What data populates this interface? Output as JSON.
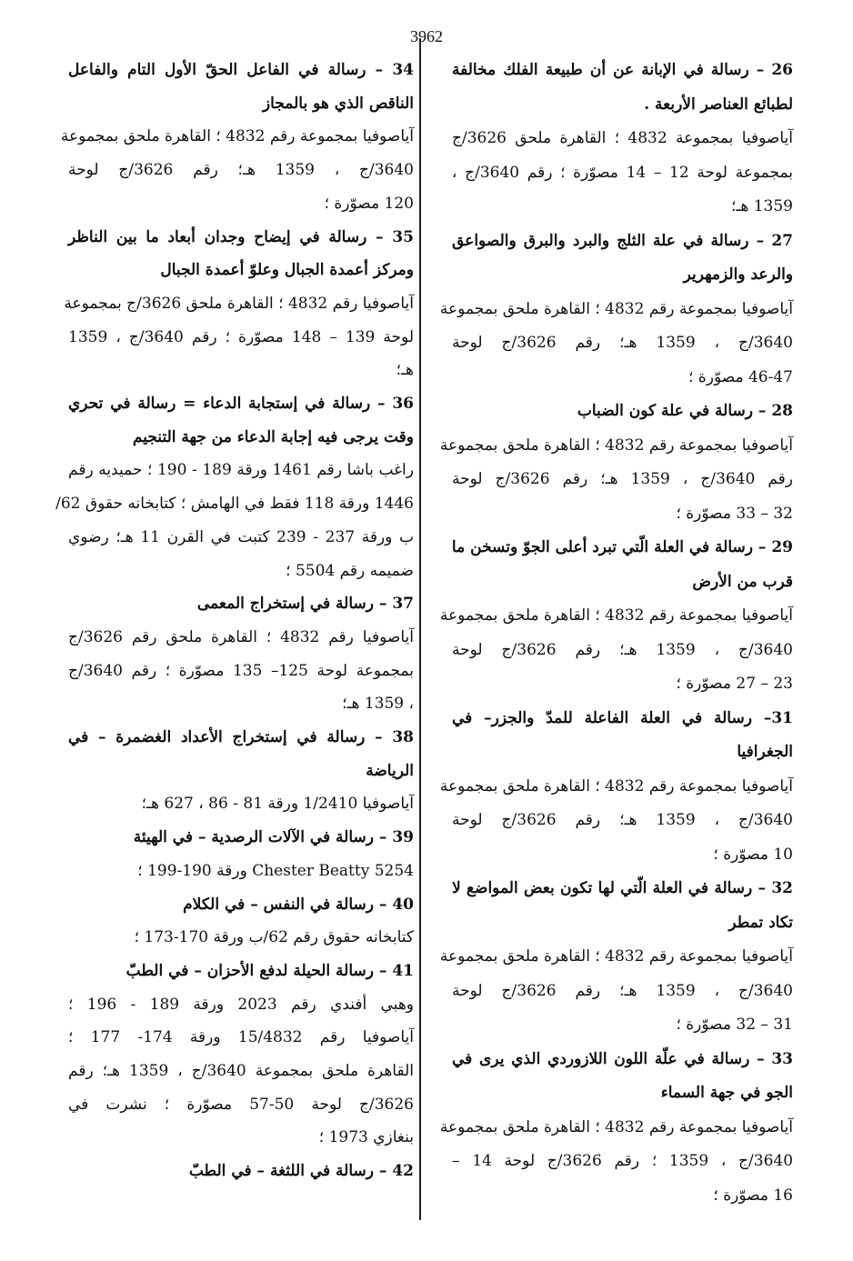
{
  "page_number": "3962",
  "columns": {
    "right": [
      {
        "title": [
          "26 – رسالة في الإبانة عن أن طبيعة الفلك مخالفة",
          "لطبائع العناصر الأربعة ."
        ],
        "body": [
          "آياصوفيا بمجموعة 4832 ؛ القاهرة ملحق 3626/ج",
          "بمجموعة لوحة 12 – 14 مصوّرة ؛ رقم 3640/ج ،",
          "1359 هـ؛"
        ]
      },
      {
        "title": [
          "27 – رسالة في علة الثلج والبرد والبرق والصواعق",
          "والرعد والزمهرير"
        ],
        "body": [
          "آياصوفيا بمجموعة رقم 4832 ؛ القاهرة ملحق بمجموعة",
          "3640/ج ، 1359 هـ؛ رقم 3626/ج لوحة",
          "46-47 مصوّرة ؛"
        ]
      },
      {
        "title": [
          "28 – رسالة في علة كون الضباب"
        ],
        "body": [
          "آياصوفيا بمجموعة رقم 4832 ؛ القاهرة ملحق بمجموعة",
          "رقم 3640/ج ، 1359 هـ؛ رقم 3626/ج لوحة",
          "32 – 33 مصوّرة ؛"
        ]
      },
      {
        "title": [
          "29 – رسالة في العلة الّتي تبرد أعلى الجوّ وتسخن ما",
          "قرب من الأرض"
        ],
        "body": [
          "آياصوفيا بمجموعة رقم 4832 ؛ القاهرة ملحق بمجموعة",
          "3640/ج ، 1359 هـ؛ رقم 3626/ج لوحة",
          "23 – 27 مصوّرة ؛"
        ]
      },
      {
        "title": [
          "31– رسالة في العلة الفاعلة للمدّ والجزر– في",
          "الجغرافيا"
        ],
        "body": [
          "آياصوفيا بمجموعة رقم 4832 ؛ القاهرة ملحق بمجموعة",
          "3640/ج ، 1359 هـ؛ رقم 3626/ج لوحة",
          "10 مصوّرة ؛"
        ]
      },
      {
        "title": [
          "32 – رسالة في العلة الّتي لها تكون بعض المواضع لا",
          "تكاد تمطر"
        ],
        "body": [
          "آياصوفيا بمجموعة رقم 4832 ؛ القاهرة ملحق بمجموعة",
          "3640/ج ، 1359 هـ؛ رقم 3626/ج لوحة",
          "31 – 32 مصوّرة ؛"
        ]
      },
      {
        "title": [
          "33 – رسالة في علّة اللون اللازوردي الذي يرى في",
          "الجو في جهة السماء"
        ],
        "body": [
          "آياصوفيا بمجموعة رقم 4832 ؛ القاهرة ملحق بمجموعة",
          "3640/ج ، 1359 ؛ رقم 3626/ج لوحة 14 –",
          "16 مصوّرة ؛"
        ]
      }
    ],
    "left": [
      {
        "title": [
          "34 – رسالة في الفاعل الحقّ الأول التام والفاعل",
          "الناقص الذي هو بالمجاز"
        ],
        "body": [
          "آياصوفيا بمجموعة رقم 4832 ؛ القاهرة ملحق بمجموعة",
          "3640/ج ، 1359 هـ؛ رقم 3626/ج لوحة",
          "120 مصوّرة ؛"
        ]
      },
      {
        "title": [
          "35 – رسالة في إيضاح وجدان أبعاد ما بين الناظر",
          "ومركز أعمدة الجبال وعلوّ أعمدة الجبال"
        ],
        "body": [
          "آياصوفيا رقم 4832 ؛ القاهرة ملحق 3626/ج بمجموعة",
          "لوحة 139 – 148 مصوّرة ؛ رقم 3640/ج ، 1359",
          "هـ؛"
        ]
      },
      {
        "title": [
          "36 – رسالة في إستجابة الدعاء = رسالة في تحري",
          "وقت يرجى فيه إجابة الدعاء من جهة التنجيم"
        ],
        "body": [
          "راغب باشا رقم 1461 ورقة 189 - 190 ؛ حميديه رقم",
          "1446 ورقة 118 فقط في الهامش ؛ كتابخانه حقوق 62/",
          "ب ورقة 237 - 239 كتبت في القرن 11 هـ؛ رضوي",
          "ضميمه رقم 5504 ؛"
        ]
      },
      {
        "title": [
          "37 – رسالة في إستخراج المعمى"
        ],
        "body": [
          "آياصوفيا رقم 4832 ؛ القاهرة ملحق رقم 3626/ج",
          "بمجموعة لوحة 125– 135 مصوّرة ؛ رقم 3640/ج",
          "، 1359 هـ؛"
        ]
      },
      {
        "title": [
          "38 – رسالة في إستخراج الأعداد الغضمرة – في",
          "الرياضة"
        ],
        "body": [
          "آياصوفيا 1/2410 ورقة 81 - 86 ، 627 هـ؛"
        ]
      },
      {
        "title": [
          "39 – رسالة في الآلات الرصدية – في الهيئة"
        ],
        "body": [
          "Chester Beatty 5254 ورقة 190-199 ؛"
        ]
      },
      {
        "title": [
          "40 – رسالة في النفس – في الكلام"
        ],
        "body": [
          "كتابخانه حقوق رقم 62/ب ورقة 170-173 ؛"
        ]
      },
      {
        "title": [
          "41 – رسالة الحيلة لدفع الأحزان – في الطبّ"
        ],
        "body": [
          "وهبي أفندي رقم 2023 ورقة 189 - 196 ؛",
          "آياصوفيا رقم 15/4832 ورقة 174- 177 ؛",
          "القاهرة ملحق بمجموعة 3640/ج ، 1359 هـ؛ رقم",
          "3626/ج لوحة 50-57 مصوّرة ؛ نشرت في",
          "بنغازي 1973 ؛"
        ]
      },
      {
        "title": [
          "42 – رسالة في اللثغة – في الطبّ"
        ],
        "body": []
      }
    ]
  }
}
